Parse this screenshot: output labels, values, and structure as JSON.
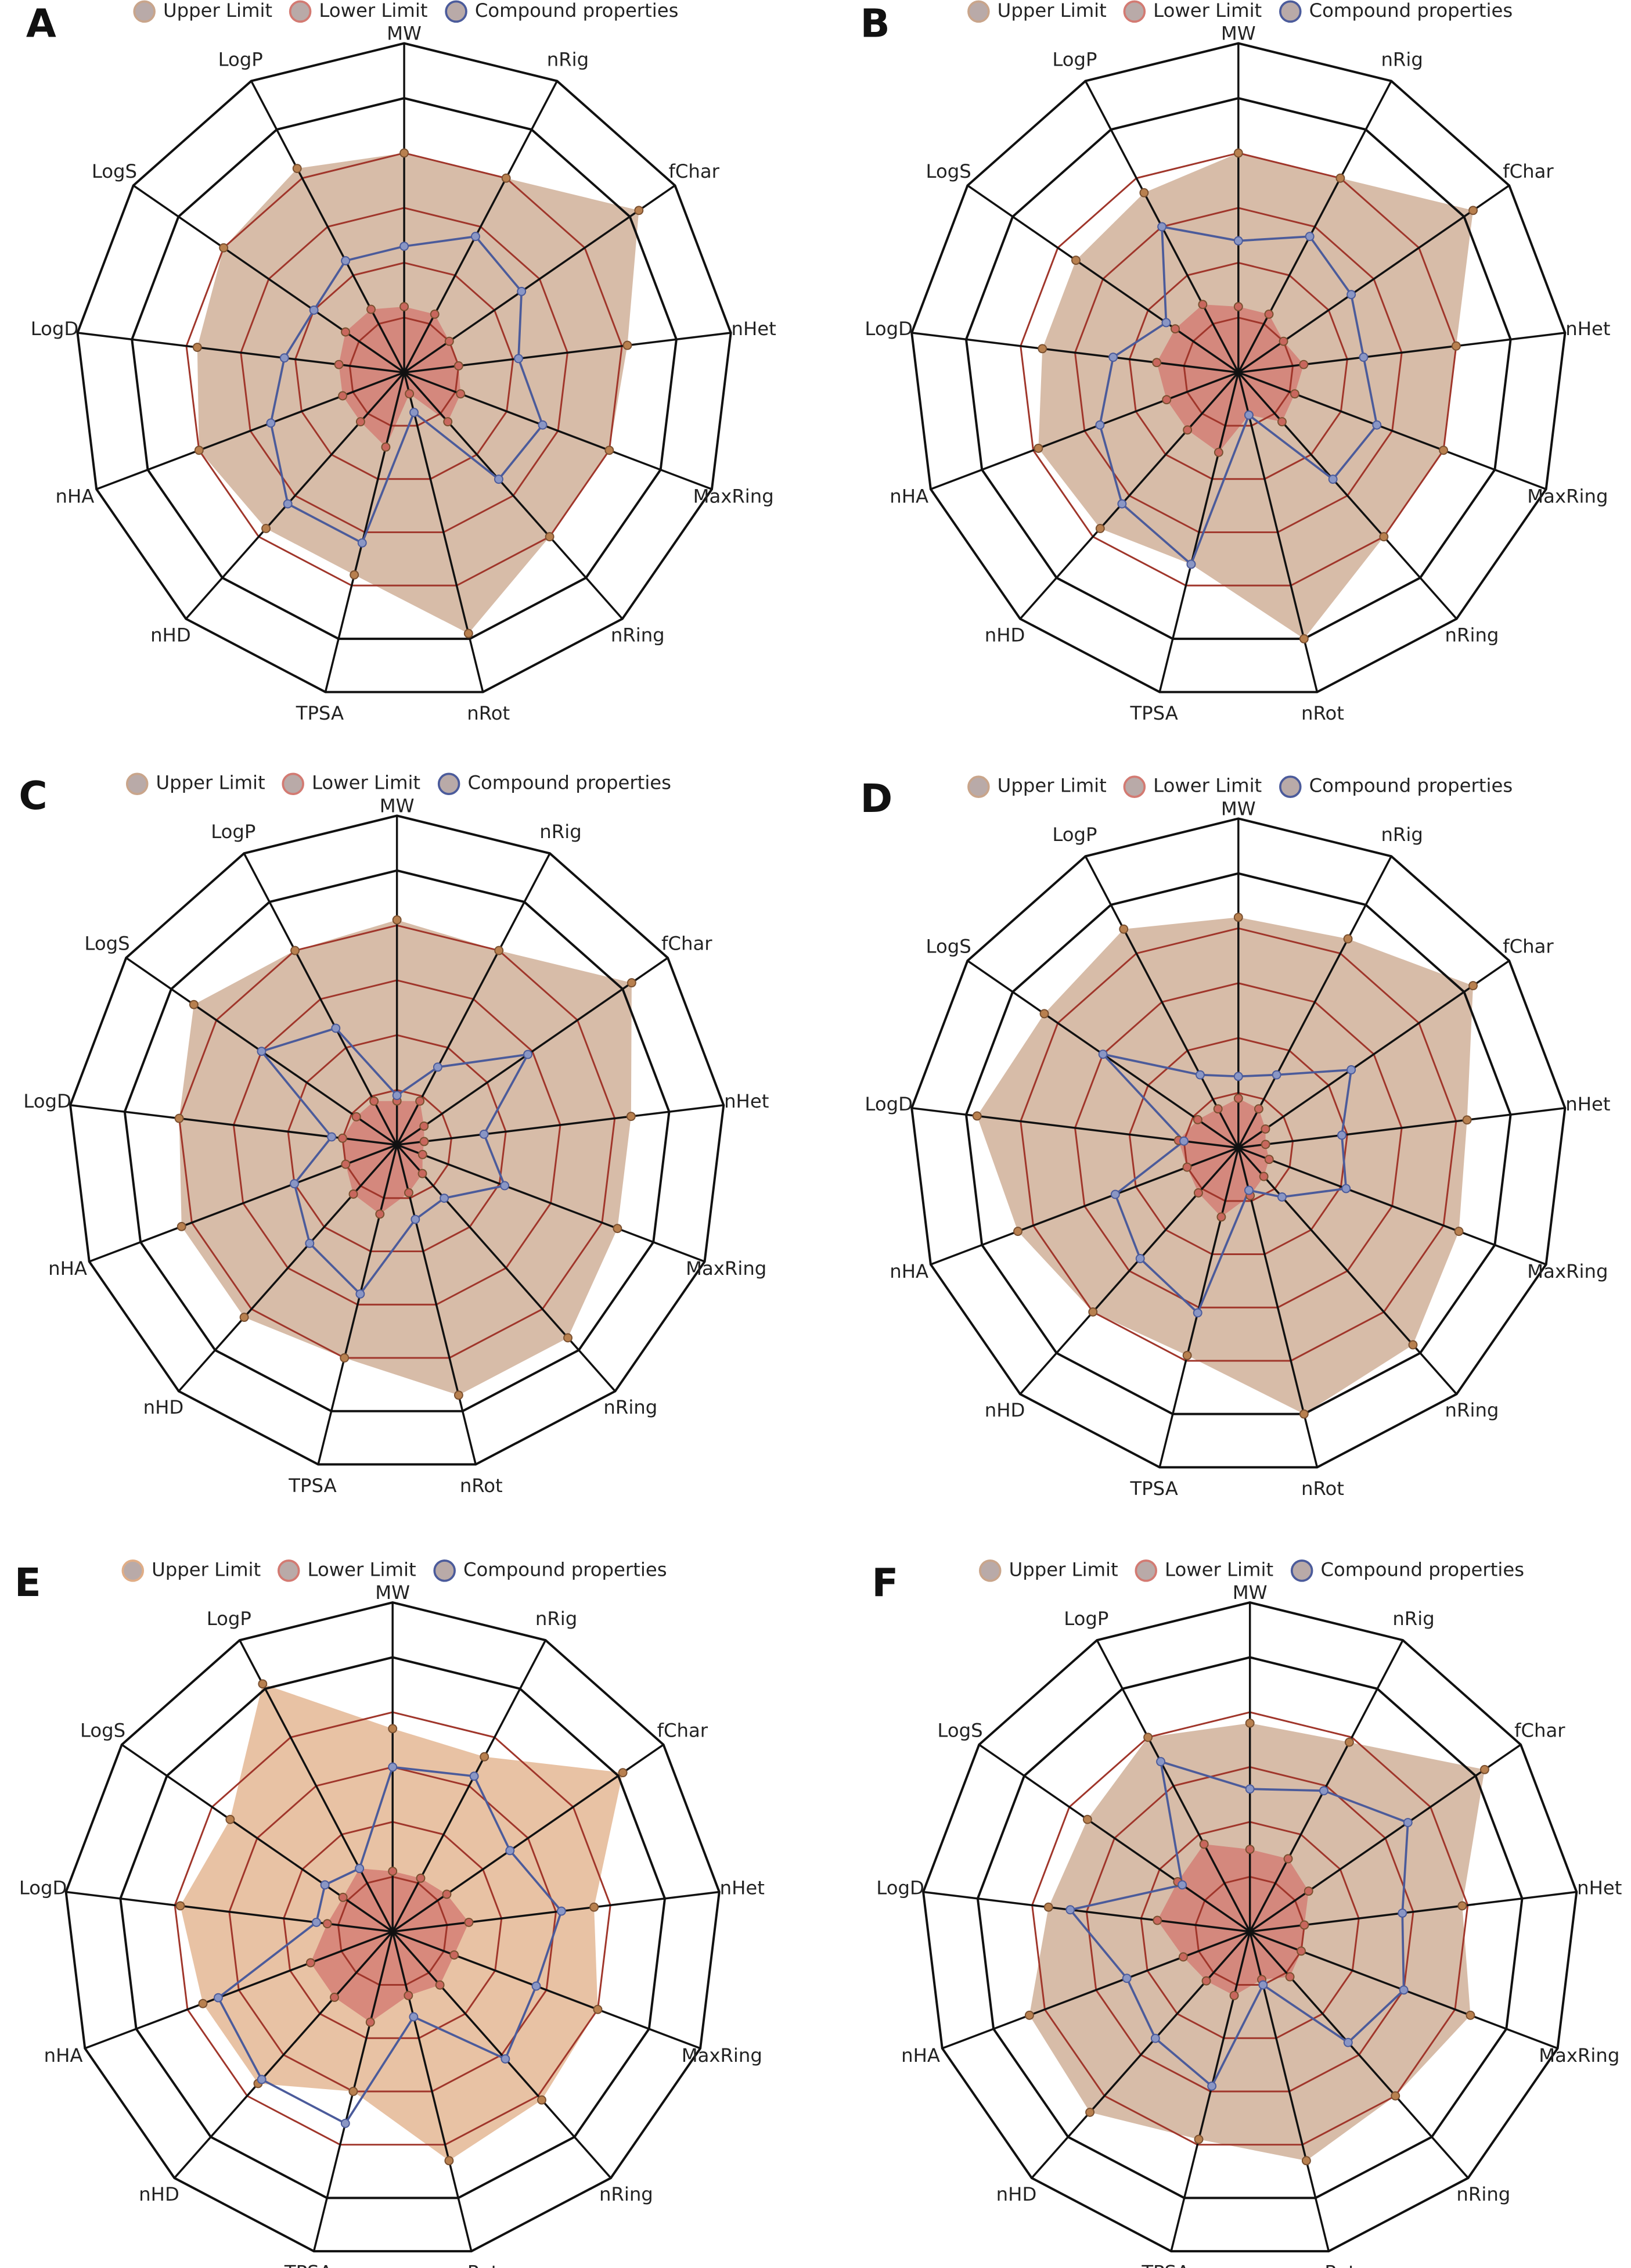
{
  "chart_data": [
    {
      "type": "radar",
      "panel": "A",
      "categories": [
        "MW",
        "nRig",
        "fChar",
        "nHet",
        "MaxRing",
        "nRing",
        "nRot",
        "TPSA",
        "nHD",
        "nHA",
        "LogD",
        "LogS",
        "LogP"
      ],
      "series": [
        {
          "name": "Upper Limit",
          "color": "#c9a58b",
          "values": [
            4,
            4,
            5.2,
            4.1,
            4,
            4,
            4.9,
            3.8,
            3.8,
            4,
            3.8,
            4,
            4.2
          ]
        },
        {
          "name": "Lower Limit",
          "color": "#d37a72",
          "values": [
            1.2,
            1.2,
            1,
            1,
            1.1,
            1.2,
            0.4,
            1.4,
            1.2,
            1.2,
            1.2,
            1.3,
            1.3
          ]
        },
        {
          "name": "Compound properties",
          "color": "#4b5b9b",
          "values": [
            2.3,
            2.8,
            2.6,
            2.1,
            2.7,
            2.6,
            0.75,
            3.2,
            3.2,
            2.6,
            2.2,
            2,
            2.3
          ]
        }
      ],
      "rlim": [
        0,
        6
      ],
      "rticks": [
        1,
        2,
        3,
        4
      ],
      "frame_ticks": [
        5,
        6
      ],
      "grid_color": "#a0362b",
      "frame_color": "#111"
    },
    {
      "type": "radar",
      "panel": "B",
      "categories": [
        "MW",
        "nRig",
        "fChar",
        "nHet",
        "MaxRing",
        "nRing",
        "nRot",
        "TPSA",
        "nHD",
        "nHA",
        "LogD",
        "LogS",
        "LogP"
      ],
      "series": [
        {
          "name": "Upper Limit",
          "color": "#c9a58b",
          "values": [
            4,
            4,
            5.2,
            4,
            4,
            4,
            5,
            3.6,
            3.8,
            3.9,
            3.6,
            3.6,
            3.7
          ]
        },
        {
          "name": "Lower Limit",
          "color": "#d37a72",
          "values": [
            1.2,
            1.2,
            1,
            1.2,
            1.1,
            1.2,
            0.8,
            1.5,
            1.4,
            1.4,
            1.5,
            1.4,
            1.4
          ]
        },
        {
          "name": "Compound properties",
          "color": "#4b5b9b",
          "values": [
            2.4,
            2.8,
            2.5,
            2.3,
            2.7,
            2.6,
            0.8,
            3.6,
            3.2,
            2.7,
            2.3,
            1.6,
            3
          ]
        }
      ],
      "rlim": [
        0,
        6
      ],
      "rticks": [
        1,
        2,
        3,
        4
      ],
      "frame_ticks": [
        5,
        6
      ],
      "grid_color": "#a0362b",
      "frame_color": "#111"
    },
    {
      "type": "radar",
      "panel": "C",
      "categories": [
        "MW",
        "nRig",
        "fChar",
        "nHet",
        "MaxRing",
        "nRing",
        "nRot",
        "TPSA",
        "nHD",
        "nHA",
        "LogD",
        "LogS",
        "LogP"
      ],
      "series": [
        {
          "name": "Upper Limit",
          "color": "#c9a58b",
          "values": [
            4.1,
            4,
            5.2,
            4.3,
            4.3,
            4.7,
            4.7,
            4,
            4.2,
            4.2,
            4,
            4.5,
            4
          ]
        },
        {
          "name": "Lower Limit",
          "color": "#d37a72",
          "values": [
            0.8,
            0.9,
            0.6,
            0.5,
            0.5,
            0.7,
            0.9,
            1.3,
            1.2,
            1,
            1,
            0.9,
            0.9
          ]
        },
        {
          "name": "Compound properties",
          "color": "#4b5b9b",
          "values": [
            0.9,
            1.6,
            2.9,
            1.6,
            2.1,
            1.3,
            1.4,
            2.8,
            2.4,
            2,
            1.2,
            3,
            2.4
          ]
        }
      ],
      "rlim": [
        0,
        6
      ],
      "rticks": [
        1,
        2,
        3,
        4
      ],
      "frame_ticks": [
        5,
        6
      ],
      "grid_color": "#a0362b",
      "frame_color": "#111"
    },
    {
      "type": "radar",
      "panel": "D",
      "categories": [
        "MW",
        "nRig",
        "fChar",
        "nHet",
        "MaxRing",
        "nRing",
        "nRot",
        "TPSA",
        "nHD",
        "nHA",
        "LogD",
        "LogS",
        "LogP"
      ],
      "series": [
        {
          "name": "Upper Limit",
          "color": "#c9a58b",
          "values": [
            4.2,
            4.3,
            5.2,
            4.2,
            4.3,
            4.8,
            5,
            3.9,
            4,
            4.3,
            4.8,
            4.3,
            4.5
          ]
        },
        {
          "name": "Lower Limit",
          "color": "#d37a72",
          "values": [
            0.9,
            0.8,
            0.6,
            0.5,
            0.6,
            0.7,
            0.9,
            1.3,
            1.1,
            1,
            1.1,
            0.9,
            0.8
          ]
        },
        {
          "name": "Compound properties",
          "color": "#4b5b9b",
          "values": [
            1.3,
            1.5,
            2.5,
            1.9,
            2.1,
            1.2,
            0.8,
            3.1,
            2.7,
            2.4,
            1,
            3,
            1.5
          ]
        }
      ],
      "rlim": [
        0,
        6
      ],
      "rticks": [
        1,
        2,
        3,
        4
      ],
      "frame_ticks": [
        5,
        6
      ],
      "grid_color": "#a0362b",
      "frame_color": "#111"
    },
    {
      "type": "radar",
      "panel": "E",
      "categories": [
        "MW",
        "nRig",
        "fChar",
        "nHet",
        "MaxRing",
        "nRing",
        "nRot",
        "TPSA",
        "nHD",
        "nHA",
        "LogD",
        "LogS",
        "LogP"
      ],
      "series": [
        {
          "name": "Upper Limit",
          "color": "#e0ad86",
          "values": [
            3.7,
            3.6,
            5.1,
            3.7,
            4,
            4.1,
            4.3,
            3,
            3.7,
            3.7,
            3.9,
            3.6,
            5.1
          ]
        },
        {
          "name": "Lower Limit",
          "color": "#d37a72",
          "values": [
            1.1,
            1.1,
            1.2,
            1.4,
            1.2,
            1.3,
            1.2,
            1.7,
            1.6,
            1.6,
            1.2,
            1.1,
            1.3
          ]
        },
        {
          "name": "Compound properties",
          "color": "#4b5b9b",
          "values": [
            3,
            3.2,
            2.6,
            3.1,
            2.8,
            3.1,
            1.6,
            3.6,
            3.6,
            3.4,
            1.4,
            1.5,
            1.3
          ]
        }
      ],
      "rlim": [
        0,
        6
      ],
      "rticks": [
        1,
        2,
        3,
        4
      ],
      "frame_ticks": [
        5,
        6
      ],
      "grid_color": "#a0362b",
      "frame_color": "#111"
    },
    {
      "type": "radar",
      "panel": "F",
      "categories": [
        "MW",
        "nRig",
        "fChar",
        "nHet",
        "MaxRing",
        "nRing",
        "nRot",
        "TPSA",
        "nHD",
        "nHA",
        "LogD",
        "LogS",
        "LogP"
      ],
      "series": [
        {
          "name": "Upper Limit",
          "color": "#c9a58b",
          "values": [
            3.8,
            3.9,
            5.2,
            3.9,
            4.3,
            4,
            4.3,
            3.9,
            4.4,
            4.3,
            3.7,
            3.6,
            4
          ]
        },
        {
          "name": "Lower Limit",
          "color": "#d37a72",
          "values": [
            1.5,
            1.5,
            1.3,
            1,
            1,
            1.1,
            0.9,
            1.2,
            1.2,
            1.3,
            1.7,
            1.6,
            1.8
          ]
        },
        {
          "name": "Compound properties",
          "color": "#4b5b9b",
          "values": [
            2.6,
            2.9,
            3.5,
            2.8,
            3,
            2.7,
            1,
            2.9,
            2.6,
            2.4,
            3.3,
            1.5,
            3.5
          ]
        }
      ],
      "rlim": [
        0,
        6
      ],
      "rticks": [
        1,
        2,
        3,
        4
      ],
      "frame_ticks": [
        5,
        6
      ],
      "grid_color": "#a0362b",
      "frame_color": "#111"
    }
  ]
}
